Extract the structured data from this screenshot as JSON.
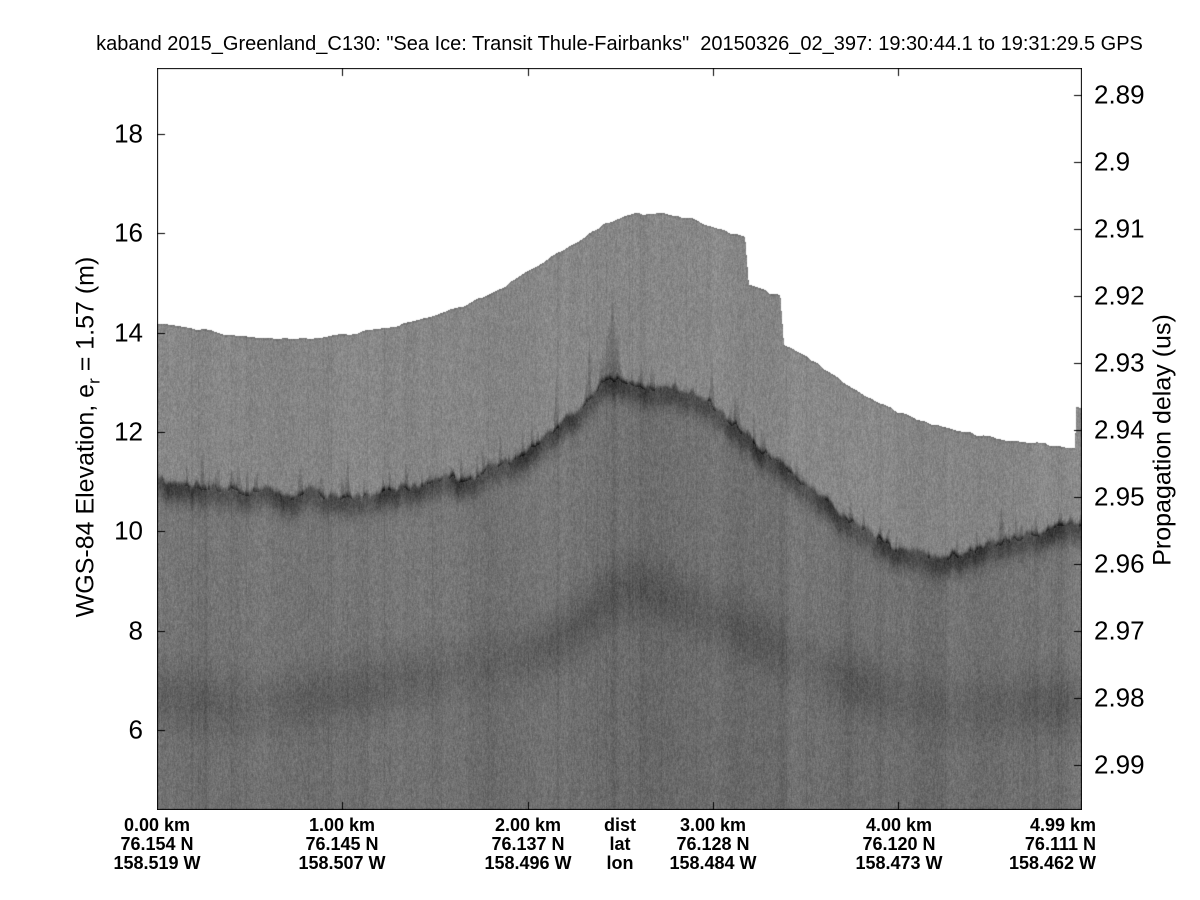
{
  "chart_data": {
    "type": "heatmap",
    "description": "Ka-band radar altimeter echogram (grayscale) of sea ice surface, Thule-Fairbanks transit",
    "title": "kaband 2015_Greenland_C130: \"Sea Ice: Transit Thule-Fairbanks\"  20150326_02_397: 19:30:44.1 to 19:31:29.5 GPS",
    "left_axis": {
      "label": "WGS-84 Elevation, e_r = 1.57 (m)",
      "label_parts": {
        "pre": "WGS-84 Elevation, e",
        "sub": "r",
        "post": " = 1.57 (m)"
      },
      "ticks": [
        18,
        16,
        14,
        12,
        10,
        8,
        6
      ],
      "tick_labels": [
        "18",
        "16",
        "14",
        "12",
        "10",
        "8",
        "6"
      ]
    },
    "right_axis": {
      "label": "Propagation delay (us)",
      "ticks": [
        2.89,
        2.9,
        2.91,
        2.92,
        2.93,
        2.94,
        2.95,
        2.96,
        2.97,
        2.98,
        2.99
      ],
      "tick_labels": [
        "2.89",
        "2.9",
        "2.91",
        "2.92",
        "2.93",
        "2.94",
        "2.95",
        "2.96",
        "2.97",
        "2.98",
        "2.99"
      ]
    },
    "x_axis": {
      "row_headers": {
        "dist": "dist",
        "lat": "lat",
        "lon": "lon"
      },
      "tick_km": [
        0,
        1,
        2,
        3,
        4,
        4.99
      ],
      "columns": [
        {
          "dist": "0.00 km",
          "lat": "76.154 N",
          "lon": "158.519 W"
        },
        {
          "dist": "1.00 km",
          "lat": "76.145 N",
          "lon": "158.507 W"
        },
        {
          "dist": "2.00 km",
          "lat": "76.137 N",
          "lon": "158.496 W"
        },
        {
          "dist": "3.00 km",
          "lat": "76.128 N",
          "lon": "158.484 W"
        },
        {
          "dist": "4.00 km",
          "lat": "76.120 N",
          "lon": "158.473 W"
        },
        {
          "dist": "4.99 km",
          "lat": "76.111 N",
          "lon": "158.462 W"
        }
      ]
    },
    "axes_ranges": {
      "elev_top": 19.33,
      "elev_bottom": 4.39,
      "km_max": 4.99,
      "delay_top": 2.886,
      "delay_bottom": 2.9967
    },
    "surface_profile": [
      [
        0.0,
        14.21
      ],
      [
        0.18,
        14.11
      ],
      [
        0.39,
        13.97
      ],
      [
        0.61,
        13.89
      ],
      [
        0.82,
        13.89
      ],
      [
        1.04,
        13.99
      ],
      [
        1.25,
        14.11
      ],
      [
        1.47,
        14.31
      ],
      [
        1.68,
        14.59
      ],
      [
        1.9,
        15.0
      ],
      [
        2.11,
        15.5
      ],
      [
        2.27,
        15.86
      ],
      [
        2.43,
        16.23
      ],
      [
        2.57,
        16.39
      ],
      [
        2.73,
        16.43
      ],
      [
        2.89,
        16.29
      ],
      [
        3.02,
        16.11
      ],
      [
        3.17,
        15.93
      ],
      [
        3.19,
        14.96
      ],
      [
        3.36,
        14.74
      ],
      [
        3.38,
        13.75
      ],
      [
        3.51,
        13.51
      ],
      [
        3.66,
        13.11
      ],
      [
        3.83,
        12.72
      ],
      [
        3.99,
        12.42
      ],
      [
        4.15,
        12.2
      ],
      [
        4.31,
        12.04
      ],
      [
        4.52,
        11.88
      ],
      [
        4.74,
        11.78
      ],
      [
        4.95,
        11.7
      ],
      [
        4.956,
        12.53
      ],
      [
        4.99,
        12.51
      ]
    ],
    "interface_profile": [
      [
        0.0,
        11.07
      ],
      [
        0.23,
        10.97
      ],
      [
        0.5,
        10.83
      ],
      [
        0.77,
        10.71
      ],
      [
        1.04,
        10.73
      ],
      [
        1.3,
        10.81
      ],
      [
        1.57,
        10.99
      ],
      [
        1.84,
        11.27
      ],
      [
        2.0,
        11.6
      ],
      [
        2.16,
        12.0
      ],
      [
        2.32,
        12.54
      ],
      [
        2.44,
        13.09
      ],
      [
        2.54,
        13.01
      ],
      [
        2.7,
        12.93
      ],
      [
        2.86,
        12.83
      ],
      [
        2.98,
        12.64
      ],
      [
        3.09,
        12.28
      ],
      [
        3.25,
        11.72
      ],
      [
        3.41,
        11.09
      ],
      [
        3.57,
        10.61
      ],
      [
        3.73,
        10.21
      ],
      [
        3.89,
        9.82
      ],
      [
        4.05,
        9.54
      ],
      [
        4.21,
        9.4
      ],
      [
        4.37,
        9.48
      ],
      [
        4.53,
        9.7
      ],
      [
        4.69,
        9.96
      ],
      [
        4.86,
        10.1
      ],
      [
        4.99,
        10.18
      ]
    ],
    "deep_band": [
      [
        0.0,
        6.7
      ],
      [
        0.27,
        6.55
      ],
      [
        0.5,
        6.48
      ],
      [
        0.8,
        6.62
      ],
      [
        1.05,
        6.8
      ],
      [
        1.3,
        7.0
      ],
      [
        1.57,
        7.16
      ],
      [
        1.84,
        7.4
      ],
      [
        2.11,
        7.65
      ],
      [
        2.3,
        8.2
      ],
      [
        2.45,
        8.75
      ],
      [
        2.6,
        8.9
      ],
      [
        2.75,
        8.7
      ],
      [
        2.9,
        8.45
      ],
      [
        3.1,
        8.1
      ],
      [
        3.3,
        7.75
      ],
      [
        3.6,
        7.15
      ],
      [
        3.85,
        6.85
      ],
      [
        4.1,
        6.6
      ],
      [
        4.3,
        6.42
      ],
      [
        4.55,
        6.5
      ],
      [
        4.75,
        6.55
      ],
      [
        4.99,
        6.5
      ]
    ],
    "spikes": [
      [
        0.243,
        0.77,
        0.008
      ],
      [
        1.03,
        0.5,
        0.008
      ],
      [
        1.47,
        0.3,
        0.008
      ],
      [
        1.85,
        0.6,
        0.006
      ],
      [
        1.97,
        0.5,
        0.006
      ],
      [
        2.15,
        1.11,
        0.006
      ],
      [
        2.33,
        1.41,
        0.006
      ],
      [
        2.45,
        1.21,
        0.03
      ],
      [
        2.61,
        0.5,
        0.008
      ],
      [
        2.99,
        0.91,
        0.008
      ],
      [
        3.09,
        0.4,
        0.008
      ],
      [
        3.26,
        0.5,
        0.006
      ],
      [
        3.41,
        0.3,
        0.008
      ],
      [
        3.74,
        0.36,
        0.008
      ],
      [
        3.9,
        0.3,
        0.008
      ],
      [
        4.28,
        0.24,
        0.008
      ],
      [
        4.55,
        0.4,
        0.008
      ],
      [
        4.74,
        0.5,
        0.006
      ],
      [
        4.87,
        0.36,
        0.008
      ]
    ],
    "dark_columns": [
      [
        0.26,
        10,
        0.006
      ],
      [
        2.46,
        8,
        0.01
      ],
      [
        3.37,
        9,
        0.012
      ],
      [
        3.73,
        7,
        0.02
      ],
      [
        4.74,
        7,
        0.01
      ]
    ],
    "gray_levels": {
      "sky": 255,
      "body": 134,
      "deep_band_amp": 17
    },
    "colors": {
      "frame": "#000000",
      "text": "#000000",
      "background": "#ffffff"
    }
  }
}
